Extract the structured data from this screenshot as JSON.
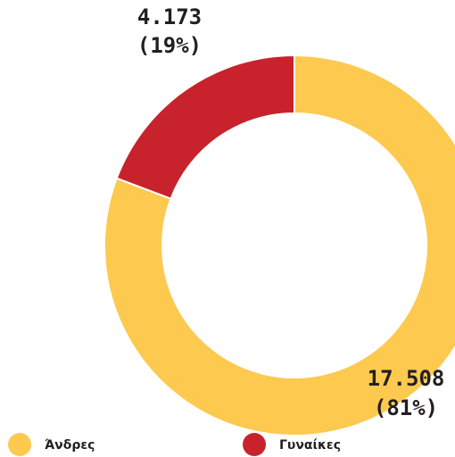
{
  "chart_data": {
    "type": "donut",
    "categories": [
      "Άνδρες",
      "Γυναίκες"
    ],
    "values": [
      17508,
      4173
    ],
    "value_labels": [
      "17.508",
      "4.173"
    ],
    "percents": [
      81,
      19
    ],
    "percent_labels": [
      "(81%)",
      "(19%)"
    ],
    "colors": [
      "#fdc94f",
      "#c8232c"
    ]
  }
}
